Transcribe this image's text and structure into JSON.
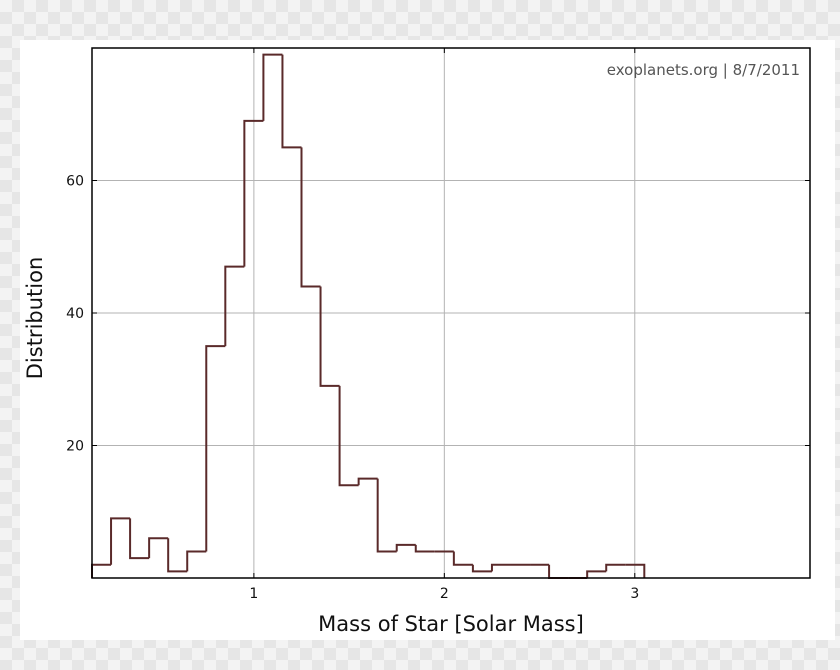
{
  "chart_data": {
    "type": "histogram",
    "annotation": "exoplanets.org | 8/7/2011",
    "xlabel": "Mass of Star [Solar Mass]",
    "ylabel": "Distribution",
    "xlim": [
      0.15,
      3.92
    ],
    "ylim": [
      0,
      80
    ],
    "xticks": [
      1,
      2,
      3
    ],
    "yticks": [
      20,
      40,
      60
    ],
    "grid": true,
    "line_color": "#5a2a2a",
    "bin_width": 0.1,
    "bins": [
      {
        "x0": 0.15,
        "x1": 0.25,
        "count": 2
      },
      {
        "x0": 0.25,
        "x1": 0.35,
        "count": 9
      },
      {
        "x0": 0.35,
        "x1": 0.45,
        "count": 3
      },
      {
        "x0": 0.45,
        "x1": 0.55,
        "count": 6
      },
      {
        "x0": 0.55,
        "x1": 0.65,
        "count": 1
      },
      {
        "x0": 0.65,
        "x1": 0.75,
        "count": 4
      },
      {
        "x0": 0.75,
        "x1": 0.85,
        "count": 35
      },
      {
        "x0": 0.85,
        "x1": 0.95,
        "count": 47
      },
      {
        "x0": 0.95,
        "x1": 1.05,
        "count": 69
      },
      {
        "x0": 1.05,
        "x1": 1.15,
        "count": 79
      },
      {
        "x0": 1.15,
        "x1": 1.25,
        "count": 65
      },
      {
        "x0": 1.25,
        "x1": 1.35,
        "count": 44
      },
      {
        "x0": 1.35,
        "x1": 1.45,
        "count": 29
      },
      {
        "x0": 1.45,
        "x1": 1.55,
        "count": 14
      },
      {
        "x0": 1.55,
        "x1": 1.65,
        "count": 15
      },
      {
        "x0": 1.65,
        "x1": 1.75,
        "count": 4
      },
      {
        "x0": 1.75,
        "x1": 1.85,
        "count": 5
      },
      {
        "x0": 1.85,
        "x1": 1.95,
        "count": 4
      },
      {
        "x0": 1.95,
        "x1": 2.05,
        "count": 4
      },
      {
        "x0": 2.05,
        "x1": 2.15,
        "count": 2
      },
      {
        "x0": 2.15,
        "x1": 2.25,
        "count": 1
      },
      {
        "x0": 2.25,
        "x1": 2.35,
        "count": 2
      },
      {
        "x0": 2.35,
        "x1": 2.45,
        "count": 2
      },
      {
        "x0": 2.45,
        "x1": 2.55,
        "count": 2
      },
      {
        "x0": 2.55,
        "x1": 2.65,
        "count": 0
      },
      {
        "x0": 2.65,
        "x1": 2.75,
        "count": 0
      },
      {
        "x0": 2.75,
        "x1": 2.85,
        "count": 1
      },
      {
        "x0": 2.85,
        "x1": 2.95,
        "count": 2
      },
      {
        "x0": 2.95,
        "x1": 3.05,
        "count": 2
      }
    ]
  }
}
